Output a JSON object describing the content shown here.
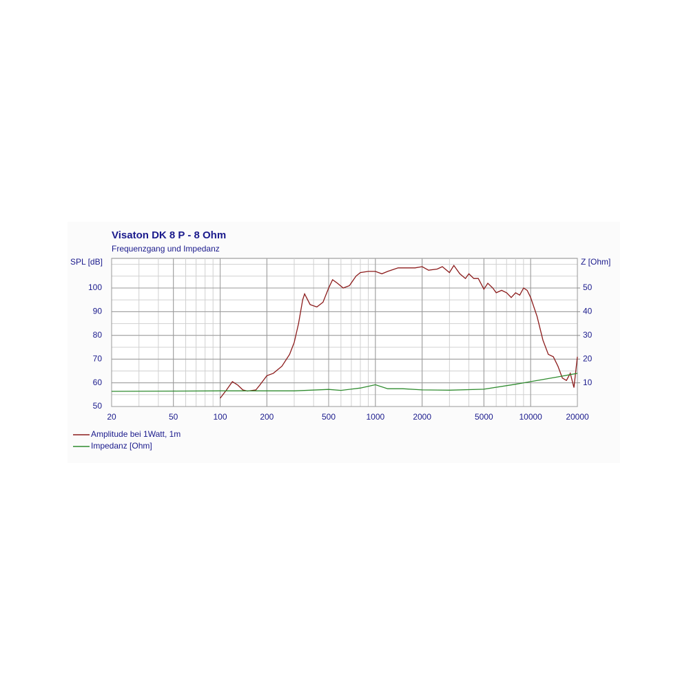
{
  "chart_data": {
    "type": "line",
    "title": "Visaton DK 8 P -  8 Ohm",
    "subtitle": "Frequenzgang und Impedanz",
    "y_label": "SPL [dB]",
    "y2_label": "Z [Ohm]",
    "xscale": "log",
    "xlim": [
      20,
      20000
    ],
    "xticks": [
      20,
      50,
      100,
      200,
      500,
      1000,
      2000,
      5000,
      10000,
      20000
    ],
    "ylim": [
      50,
      112.5
    ],
    "yticks": [
      50,
      60,
      70,
      80,
      90,
      100
    ],
    "y2lim": [
      0,
      62.5
    ],
    "y2ticks": [
      10,
      20,
      30,
      40,
      50
    ],
    "grid": true,
    "legend": "bottom-left",
    "series": [
      {
        "name": "Amplitude bei 1Watt, 1m",
        "color": "#8b1a1a",
        "x": [
          100,
          110,
          120,
          130,
          140,
          150,
          170,
          180,
          200,
          220,
          250,
          280,
          300,
          320,
          340,
          350,
          380,
          420,
          460,
          500,
          530,
          570,
          620,
          680,
          750,
          800,
          900,
          1000,
          1100,
          1200,
          1400,
          1600,
          1800,
          2000,
          2200,
          2500,
          2700,
          3000,
          3200,
          3500,
          3800,
          4000,
          4300,
          4600,
          5000,
          5300,
          5700,
          6000,
          6500,
          7000,
          7500,
          8000,
          8500,
          9000,
          9500,
          10000,
          11000,
          12000,
          13000,
          14000,
          15000,
          16000,
          17000,
          18000,
          19000,
          20000
        ],
        "values": [
          53.5,
          57,
          60.5,
          59,
          57,
          56.5,
          57,
          59,
          63,
          64,
          67,
          72,
          77,
          85,
          95,
          97.5,
          93,
          92,
          94,
          100,
          103.5,
          102,
          100,
          101,
          105,
          106.5,
          107,
          107,
          106,
          107,
          108.5,
          108.5,
          108.5,
          109,
          107.5,
          108,
          109,
          106.5,
          109.5,
          106,
          104,
          106,
          104,
          104,
          99.5,
          102,
          100,
          98,
          99,
          98,
          96,
          98,
          97,
          100,
          99,
          96,
          88,
          78,
          72,
          71,
          67,
          62,
          61,
          64,
          58,
          71
        ]
      },
      {
        "name": "Impedanz [Ohm]",
        "color": "#2e8b2e",
        "axis": "y2",
        "x": [
          20,
          50,
          100,
          300,
          500,
          600,
          800,
          1000,
          1200,
          1500,
          2000,
          3000,
          5000,
          8000,
          10000,
          15000,
          20000
        ],
        "values": [
          6.4,
          6.5,
          6.6,
          6.6,
          7.2,
          6.8,
          7.8,
          9.2,
          7.5,
          7.5,
          7,
          6.9,
          7.3,
          9.4,
          10.5,
          12.5,
          14
        ]
      }
    ]
  }
}
